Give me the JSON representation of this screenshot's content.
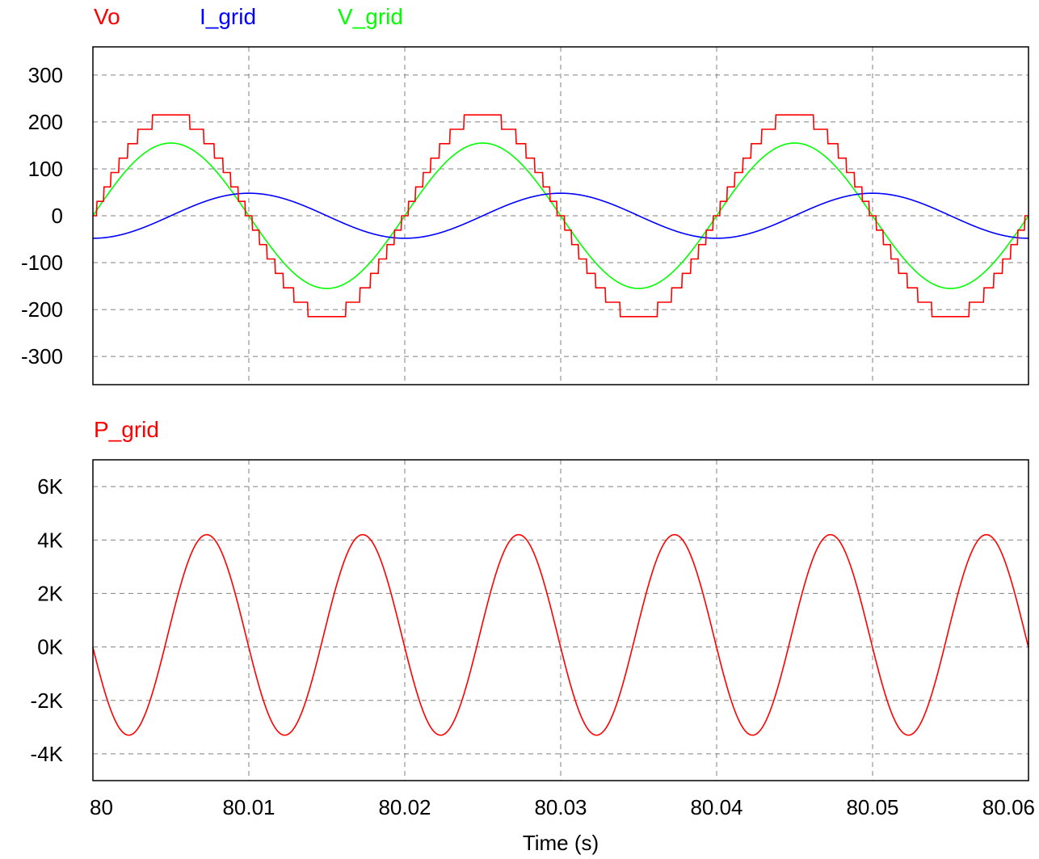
{
  "chart_data": [
    {
      "type": "line",
      "legend_placement": "top-left",
      "grid": true,
      "xlim": [
        80,
        80.06
      ],
      "ylim": [
        -360,
        360
      ],
      "y_ticks": [
        300,
        200,
        100,
        0,
        -100,
        -200,
        -300
      ],
      "y_tick_labels": [
        "300",
        "200",
        "100",
        "0",
        "-100",
        "-200",
        "-300"
      ],
      "series": [
        {
          "name": "Vo",
          "color": "#ff0000",
          "waveform": "stepped sine",
          "amplitude": 215,
          "frequency_hz": 50,
          "phase_deg": 0,
          "step_count_per_quarter": 7
        },
        {
          "name": "I_grid",
          "color": "#0000ff",
          "waveform": "sine",
          "amplitude": 48,
          "frequency_hz": 50,
          "phase_deg": -90
        },
        {
          "name": "V_grid",
          "color": "#00ff00",
          "waveform": "sine",
          "amplitude": 155,
          "frequency_hz": 50,
          "phase_deg": 0
        }
      ]
    },
    {
      "type": "line",
      "legend_placement": "top-left",
      "grid": true,
      "xlim": [
        80,
        80.06
      ],
      "ylim": [
        -5000,
        7000
      ],
      "y_ticks": [
        6000,
        4000,
        2000,
        0,
        -2000,
        -4000
      ],
      "y_tick_labels": [
        "6K",
        "4K",
        "2K",
        "0K",
        "-2K",
        "-4K"
      ],
      "x_ticks": [
        80,
        80.01,
        80.02,
        80.03,
        80.04,
        80.05,
        80.06
      ],
      "x_tick_labels": [
        "80",
        "80.01",
        "80.02",
        "80.03",
        "80.04",
        "80.05",
        "80.06"
      ],
      "xlabel": "Time (s)",
      "series": [
        {
          "name": "P_grid",
          "color": "#ff0000",
          "waveform": "sine",
          "offset": 450,
          "amplitude": 3750,
          "frequency_hz": 100,
          "peak_time": 80.0073
        }
      ]
    }
  ]
}
